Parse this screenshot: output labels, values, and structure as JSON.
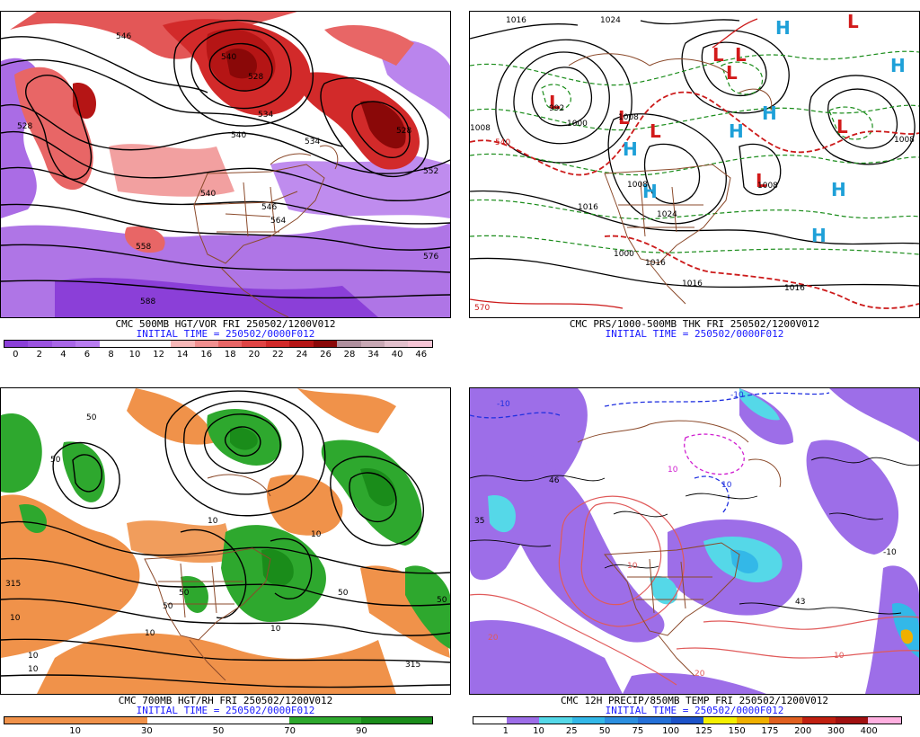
{
  "panels": [
    {
      "id": "p1",
      "title": "CMC 500MB HGT/VOR FRI 250502/1200V012",
      "subtitle": "INITIAL TIME = 250502/0000F012",
      "legend_colors": [
        "#8b3fd8",
        "#9b52e0",
        "#a966e8",
        "#b87cf0",
        "#ffffff",
        "#ffffff",
        "#ffffff",
        "#f7b8b8",
        "#f08f8f",
        "#e86666",
        "#e04545",
        "#d22a2a",
        "#b51515",
        "#8a0808",
        "#b0909e",
        "#c8a8b4",
        "#e2c0cc",
        "#f7c6d6"
      ],
      "legend_labels": [
        "0",
        "2",
        "4",
        "6",
        "8",
        "10",
        "12",
        "14",
        "16",
        "18",
        "20",
        "22",
        "24",
        "26",
        "28",
        "34",
        "40",
        "46"
      ],
      "contour_labels": [
        "546",
        "528",
        "540",
        "528",
        "534",
        "540",
        "528",
        "534",
        "540",
        "546",
        "552",
        "558",
        "564",
        "576",
        "588"
      ]
    },
    {
      "id": "p2",
      "title": "CMC PRS/1000-500MB THK FRI 250502/1200V012",
      "subtitle": "INITIAL TIME = 250502/0000F012",
      "lows": [
        "L",
        "L",
        "L",
        "L",
        "L",
        "L",
        "L",
        "L",
        "L"
      ],
      "highs": [
        "H",
        "H",
        "H",
        "H",
        "H",
        "H",
        "H",
        "H"
      ],
      "pressure_labels": [
        "1016",
        "1024",
        "992",
        "1000",
        "1008",
        "1008",
        "1016",
        "1008",
        "1000",
        "1016",
        "1024",
        "1016",
        "1008",
        "1016",
        "1008",
        "570",
        "540"
      ]
    },
    {
      "id": "p3",
      "title": "CMC 700MB HGT/RH FRI 250502/1200V012",
      "subtitle": "INITIAL TIME = 250502/0000F012",
      "legend_colors": [
        "#f0924a",
        "#f0924a",
        "#f0924a",
        "#f0924a",
        "#ffffff",
        "#ffffff",
        "#ffffff",
        "#ffffff",
        "#2ea82e",
        "#2ea82e",
        "#1a8c1a",
        "#1a8c1a"
      ],
      "legend_labels": [
        "10",
        "30",
        "50",
        "70",
        "90"
      ],
      "contour_labels": [
        "50",
        "50",
        "315",
        "10",
        "10",
        "10",
        "50",
        "50",
        "50",
        "10",
        "10",
        "10",
        "315",
        "50",
        "10"
      ]
    },
    {
      "id": "p4",
      "title": "CMC 12H PRECIP/850MB TEMP FRI 250502/1200V012",
      "subtitle": "INITIAL TIME = 250502/0000F012",
      "legend_colors": [
        "#ffffff",
        "#9d6ee8",
        "#55d8e8",
        "#33b8e8",
        "#2b8fe0",
        "#2470d8",
        "#1c52c8",
        "#f5f000",
        "#f0b000",
        "#e06020",
        "#c02010",
        "#a01010",
        "#ffb0e0"
      ],
      "legend_labels": [
        "1",
        "10",
        "25",
        "50",
        "75",
        "100",
        "125",
        "150",
        "175",
        "200",
        "300",
        "400"
      ],
      "temp_labels": [
        "-10",
        "10",
        "-10",
        "10",
        "35",
        "46",
        "20",
        "43",
        "-10",
        "10",
        "20",
        "10"
      ]
    }
  ]
}
